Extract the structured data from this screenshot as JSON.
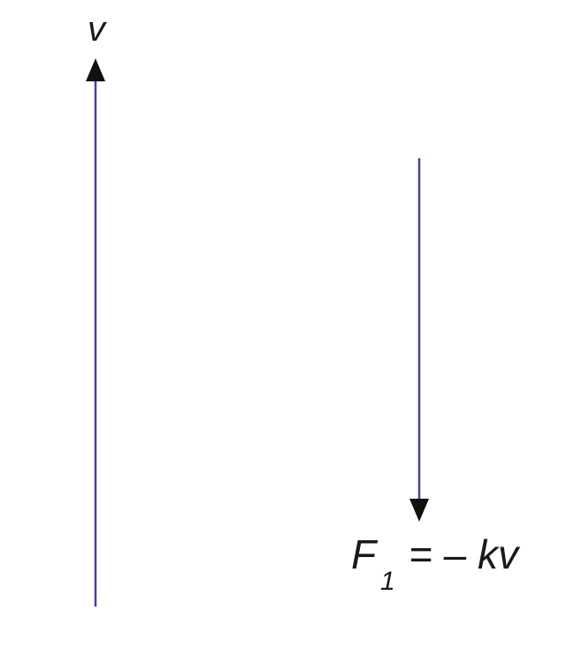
{
  "velocity_vector": {
    "label": "v",
    "direction": "up",
    "color": "#4b3f9a"
  },
  "force_vector": {
    "label_symbol": "F",
    "label_subscript": "1",
    "label_rhs": "= – kv",
    "direction": "down",
    "color": "#4b3f9a"
  },
  "arrowhead_color": "#111111"
}
